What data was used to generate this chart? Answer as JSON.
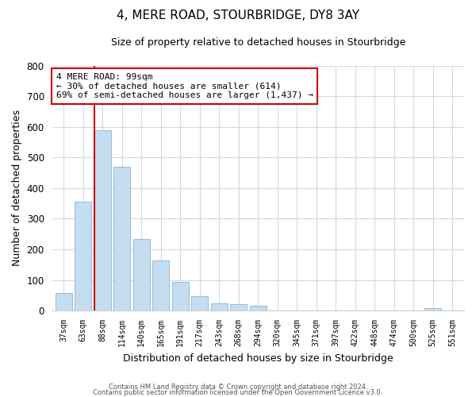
{
  "title": "4, MERE ROAD, STOURBRIDGE, DY8 3AY",
  "subtitle": "Size of property relative to detached houses in Stourbridge",
  "xlabel": "Distribution of detached houses by size in Stourbridge",
  "ylabel": "Number of detached properties",
  "bar_labels": [
    "37sqm",
    "63sqm",
    "88sqm",
    "114sqm",
    "140sqm",
    "165sqm",
    "191sqm",
    "217sqm",
    "243sqm",
    "268sqm",
    "294sqm",
    "320sqm",
    "345sqm",
    "371sqm",
    "397sqm",
    "422sqm",
    "448sqm",
    "474sqm",
    "500sqm",
    "525sqm",
    "551sqm"
  ],
  "bar_values": [
    58,
    355,
    590,
    470,
    233,
    163,
    95,
    48,
    25,
    22,
    15,
    0,
    0,
    0,
    0,
    0,
    0,
    0,
    0,
    8,
    0
  ],
  "bar_color": "#c5ddf0",
  "bar_edge_color": "#8ab4d4",
  "vline_x_idx": 2,
  "vline_color": "#cc0000",
  "annotation_title": "4 MERE ROAD: 99sqm",
  "annotation_line1": "← 30% of detached houses are smaller (614)",
  "annotation_line2": "69% of semi-detached houses are larger (1,437) →",
  "annotation_box_color": "#ffffff",
  "annotation_box_edge": "#cc0000",
  "ylim": [
    0,
    800
  ],
  "yticks": [
    0,
    100,
    200,
    300,
    400,
    500,
    600,
    700,
    800
  ],
  "footer1": "Contains HM Land Registry data © Crown copyright and database right 2024.",
  "footer2": "Contains public sector information licensed under the Open Government Licence v3.0.",
  "bg_color": "#ffffff",
  "grid_color": "#d0d8e8"
}
